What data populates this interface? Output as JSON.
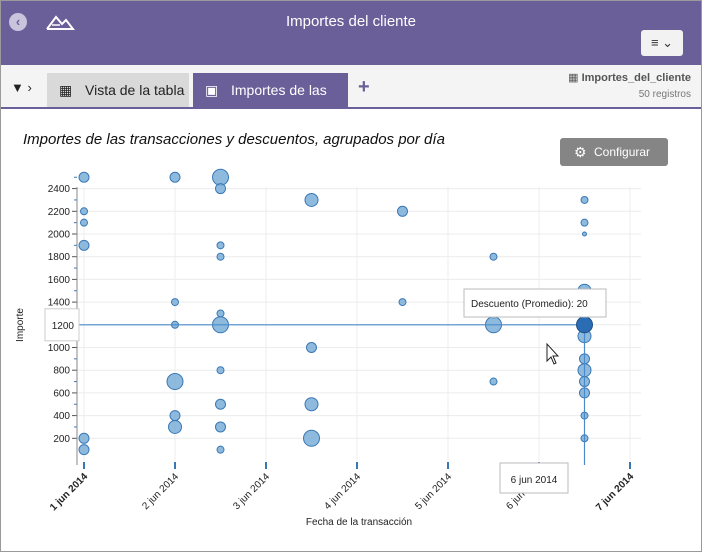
{
  "header": {
    "title": "Importes del cliente",
    "menu_label": "≡ ⌄",
    "back_icon": "arrow-left-icon",
    "logo_icon": "mountain-logo-icon"
  },
  "tabs": {
    "filter_label": "▼ ›",
    "items": [
      {
        "label": "Vista de la tabla",
        "icon": "table-icon",
        "active": false
      },
      {
        "label": "Importes de las tr...",
        "icon": "chart-icon",
        "active": true
      }
    ],
    "add_label": "+"
  },
  "datasource": {
    "name": "Importes_del_cliente",
    "count": "50 registros"
  },
  "chart_title": "Importes de las transacciones y descuentos, agrupados por día",
  "config_label": "Configurar",
  "tooltip": "Descuento (Promedio): 20",
  "crosshair": {
    "y_label": "1200",
    "x_label": "6 jun 2014"
  },
  "colors": {
    "header": "#6a5f99",
    "point": "#7aaed8",
    "point_stroke": "#3a78b5",
    "highlight": "#2a6db5"
  },
  "chart_data": {
    "type": "scatter",
    "xlabel": "Fecha de la transacción",
    "ylabel": "Importe",
    "x_ticks": [
      "1 jun 2014",
      "2 jun 2014",
      "3 jun 2014",
      "4 jun 2014",
      "5 jun 2014",
      "6 jun 2014",
      "7 jun 2014"
    ],
    "y_ticks": [
      200,
      400,
      600,
      800,
      1000,
      1200,
      1400,
      1600,
      1800,
      2000,
      2200,
      2400
    ],
    "ylim": [
      0,
      2500
    ],
    "grid": true,
    "points": [
      {
        "x": "1 jun 2014",
        "y": 2500,
        "size": 2
      },
      {
        "x": "1 jun 2014",
        "y": 2200,
        "size": 1
      },
      {
        "x": "1 jun 2014",
        "y": 2100,
        "size": 1
      },
      {
        "x": "1 jun 2014",
        "y": 1900,
        "size": 2
      },
      {
        "x": "1 jun 2014",
        "y": 200,
        "size": 2
      },
      {
        "x": "1 jun 2014",
        "y": 100,
        "size": 2
      },
      {
        "x": "2 jun 2014",
        "y": 2500,
        "size": 2
      },
      {
        "x": "2 jun 2014",
        "y": 1400,
        "size": 1
      },
      {
        "x": "2 jun 2014",
        "y": 1200,
        "size": 1
      },
      {
        "x": "2 jun 2014",
        "y": 700,
        "size": 4
      },
      {
        "x": "2 jun 2014",
        "y": 400,
        "size": 2
      },
      {
        "x": "2 jun 2014",
        "y": 300,
        "size": 3
      },
      {
        "x": "2 jun 2014 12:00",
        "y": 2500,
        "size": 4
      },
      {
        "x": "2 jun 2014 12:00",
        "y": 2400,
        "size": 2
      },
      {
        "x": "2 jun 2014 12:00",
        "y": 1900,
        "size": 1
      },
      {
        "x": "2 jun 2014 12:00",
        "y": 1800,
        "size": 1
      },
      {
        "x": "2 jun 2014 12:00",
        "y": 1300,
        "size": 1
      },
      {
        "x": "2 jun 2014 12:00",
        "y": 1200,
        "size": 4
      },
      {
        "x": "2 jun 2014 12:00",
        "y": 800,
        "size": 1
      },
      {
        "x": "2 jun 2014 12:00",
        "y": 500,
        "size": 2
      },
      {
        "x": "2 jun 2014 12:00",
        "y": 300,
        "size": 2
      },
      {
        "x": "2 jun 2014 12:00",
        "y": 100,
        "size": 1
      },
      {
        "x": "3 jun 2014 12:00",
        "y": 2300,
        "size": 3
      },
      {
        "x": "3 jun 2014 12:00",
        "y": 1000,
        "size": 2
      },
      {
        "x": "3 jun 2014 12:00",
        "y": 500,
        "size": 3
      },
      {
        "x": "3 jun 2014 12:00",
        "y": 200,
        "size": 4
      },
      {
        "x": "4 jun 2014 12:00",
        "y": 2200,
        "size": 2
      },
      {
        "x": "4 jun 2014 12:00",
        "y": 1400,
        "size": 1
      },
      {
        "x": "5 jun 2014 12:00",
        "y": 1800,
        "size": 1
      },
      {
        "x": "5 jun 2014 12:00",
        "y": 1300,
        "size": 2
      },
      {
        "x": "5 jun 2014 12:00",
        "y": 1200,
        "size": 4
      },
      {
        "x": "5 jun 2014 12:00",
        "y": 700,
        "size": 1
      },
      {
        "x": "6 jun 2014 12:00",
        "y": 2300,
        "size": 1
      },
      {
        "x": "6 jun 2014 12:00",
        "y": 2100,
        "size": 1
      },
      {
        "x": "6 jun 2014 12:00",
        "y": 2000,
        "size": 0.5
      },
      {
        "x": "6 jun 2014 12:00",
        "y": 1500,
        "size": 3
      },
      {
        "x": "6 jun 2014 12:00",
        "y": 1100,
        "size": 3
      },
      {
        "x": "6 jun 2014 12:00",
        "y": 900,
        "size": 2
      },
      {
        "x": "6 jun 2014 12:00",
        "y": 800,
        "size": 3
      },
      {
        "x": "6 jun 2014 12:00",
        "y": 700,
        "size": 2
      },
      {
        "x": "6 jun 2014 12:00",
        "y": 600,
        "size": 2
      },
      {
        "x": "6 jun 2014 12:00",
        "y": 400,
        "size": 1
      },
      {
        "x": "6 jun 2014 12:00",
        "y": 200,
        "size": 1
      }
    ]
  }
}
